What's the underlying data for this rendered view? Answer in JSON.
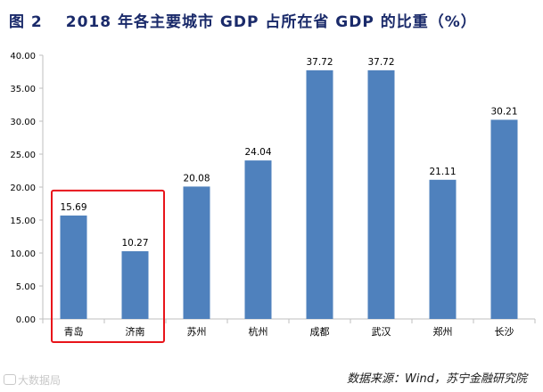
{
  "title": {
    "fig_label": "图 2",
    "text": "2018 年各主要城市 GDP 占所在省 GDP 的比重（%）"
  },
  "source_note": "数据来源：Wind，苏宁金融研究院",
  "watermark": "大数据局",
  "colors": {
    "bar": "#4f81bd",
    "highlight": "#e8141a",
    "axis": "#bfbfbf",
    "text": "#000000"
  },
  "chart_data": {
    "type": "bar",
    "title": "2018 年各主要城市 GDP 占所在省 GDP 的比重（%）",
    "categories": [
      "青岛",
      "济南",
      "苏州",
      "杭州",
      "成都",
      "武汉",
      "郑州",
      "长沙"
    ],
    "values": [
      15.69,
      10.27,
      20.08,
      24.04,
      37.72,
      37.72,
      21.11,
      30.21
    ],
    "value_labels": [
      "15.69",
      "10.27",
      "20.08",
      "24.04",
      "37.72",
      "37.72",
      "21.11",
      "30.21"
    ],
    "ylim": [
      0,
      40
    ],
    "yticks": [
      "0.00",
      "5.00",
      "10.00",
      "15.00",
      "20.00",
      "25.00",
      "30.00",
      "35.00",
      "40.00"
    ],
    "xlabel": "",
    "ylabel": "",
    "grid": false,
    "highlighted_categories": [
      "青岛",
      "济南"
    ]
  }
}
